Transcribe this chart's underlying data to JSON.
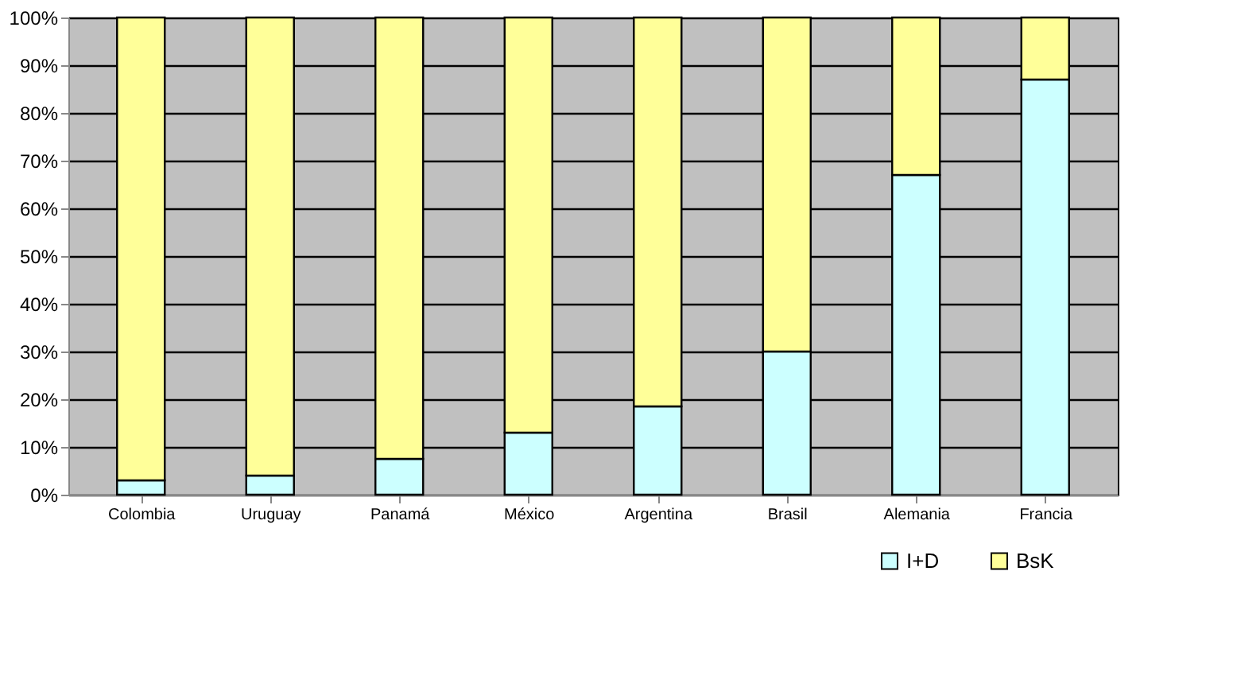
{
  "chart_data": {
    "type": "bar",
    "stacked": true,
    "categories": [
      "Colombia",
      "Uruguay",
      "Panamá",
      "México",
      "Argentina",
      "Brasil",
      "Alemania",
      "Francia"
    ],
    "series": [
      {
        "name": "I+D",
        "color": "#ccffff",
        "values": [
          3,
          4,
          7.5,
          13,
          18.5,
          30,
          67,
          87
        ]
      },
      {
        "name": "BsK",
        "color": "#ffff99",
        "values": [
          97,
          96,
          92.5,
          87,
          81.5,
          70,
          33,
          13
        ]
      }
    ],
    "ylim": [
      0,
      100
    ],
    "yticks": [
      {
        "value": 0,
        "label": "0%"
      },
      {
        "value": 10,
        "label": "10%"
      },
      {
        "value": 20,
        "label": "20%"
      },
      {
        "value": 30,
        "label": "30%"
      },
      {
        "value": 40,
        "label": "40%"
      },
      {
        "value": 50,
        "label": "50%"
      },
      {
        "value": 60,
        "label": "60%"
      },
      {
        "value": 70,
        "label": "70%"
      },
      {
        "value": 80,
        "label": "80%"
      },
      {
        "value": 90,
        "label": "90%"
      },
      {
        "value": 100,
        "label": "100%"
      }
    ],
    "grid": "y",
    "legend": "bottom right"
  }
}
